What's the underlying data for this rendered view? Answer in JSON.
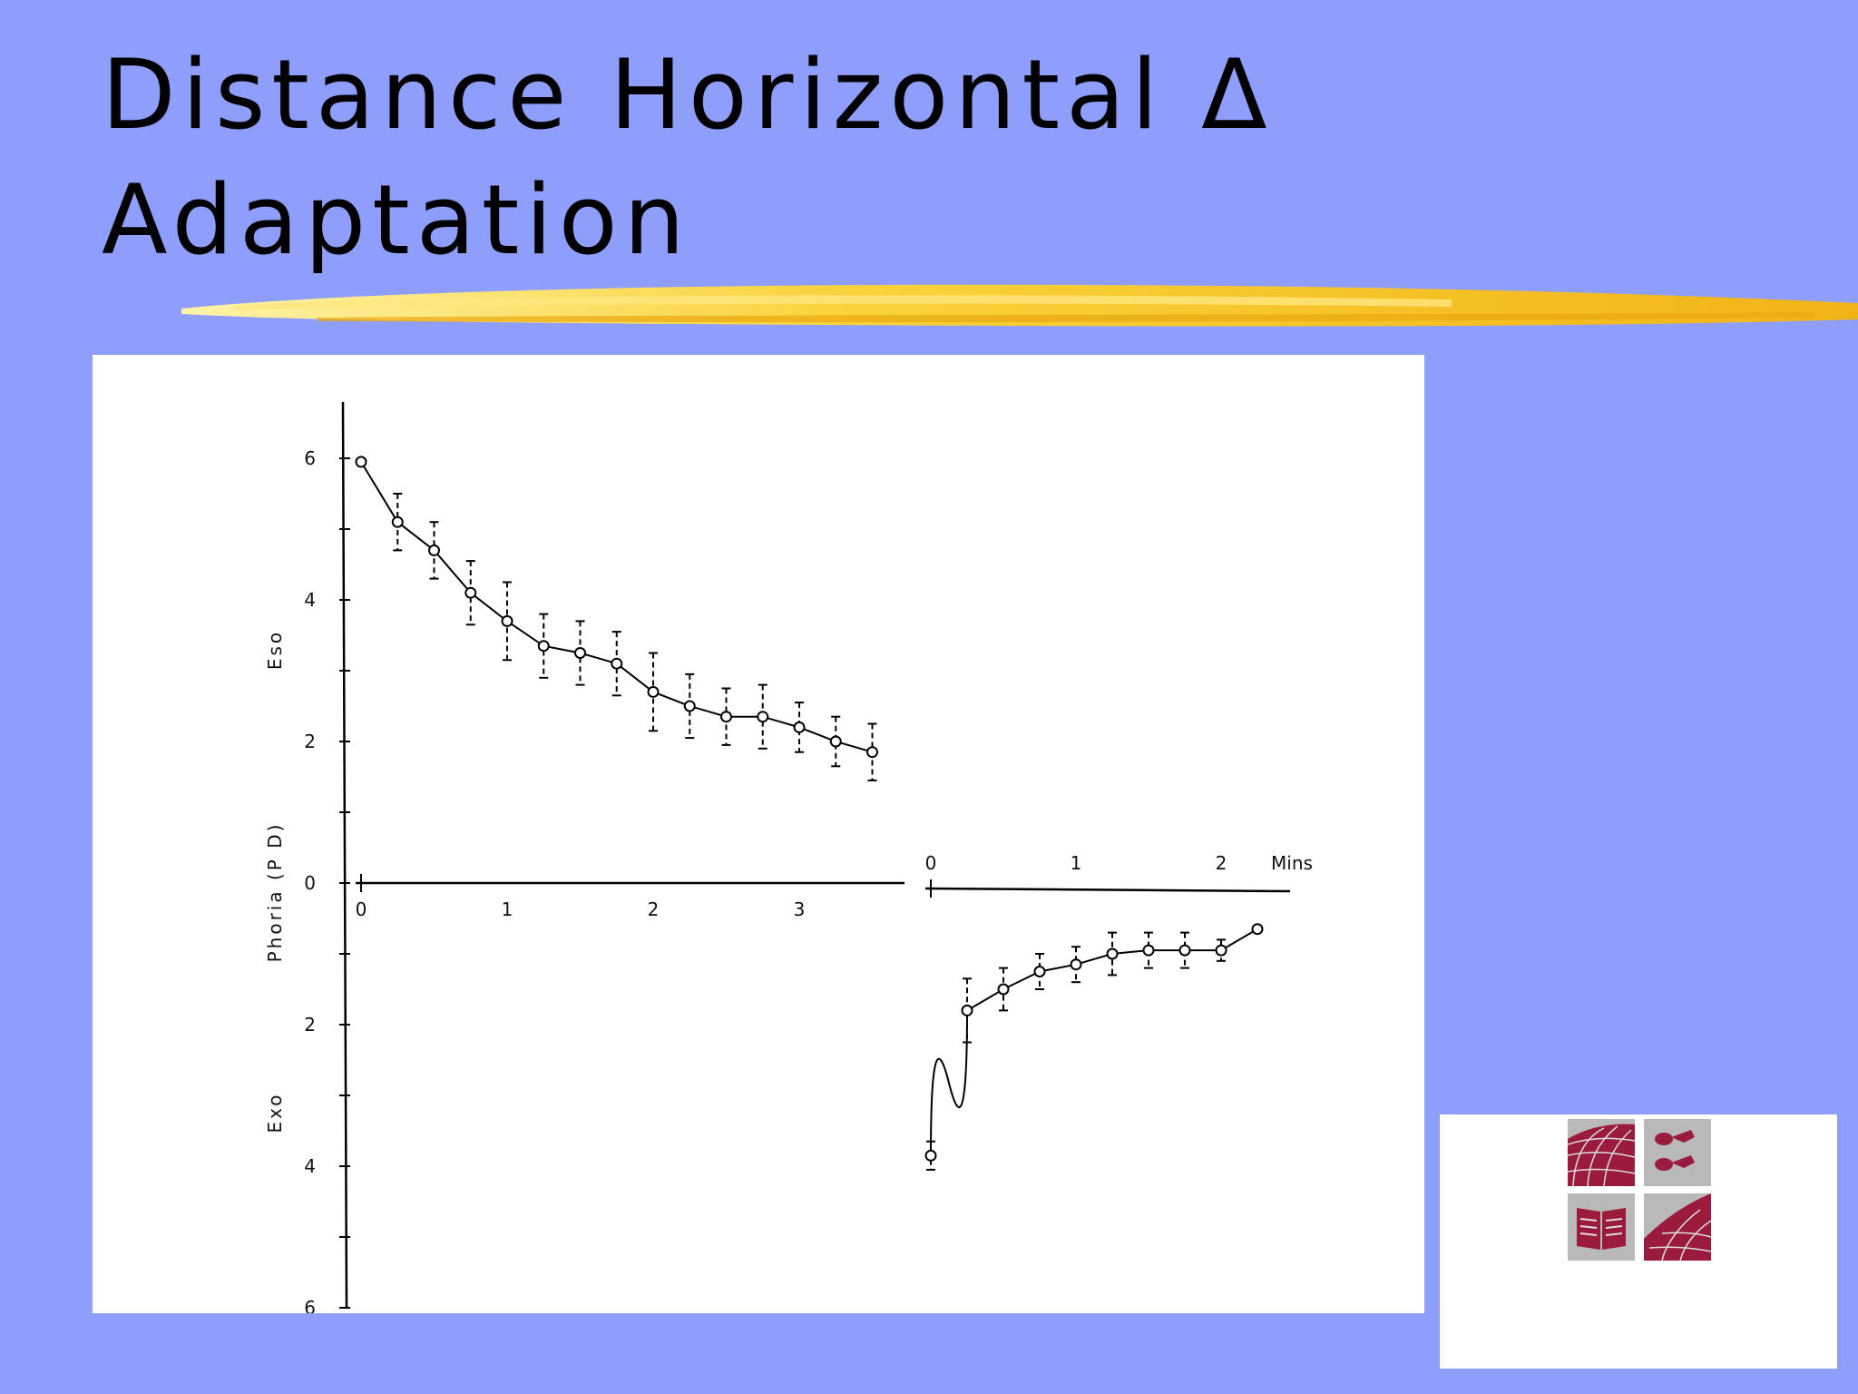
{
  "slide": {
    "title_line1": "Distance Horizontal Δ",
    "title_line2": "Adaptation"
  },
  "colors": {
    "background": "#8f9efb",
    "brush": "#f5c518",
    "logo_red": "#9b1b3c",
    "logo_gray": "#b9b9b9"
  },
  "chart_data": {
    "type": "scatter",
    "ylabel": "Phoria (P D)",
    "region_labels": [
      "Eso",
      "Exo"
    ],
    "y_ticks": [
      "6",
      "4",
      "2",
      "0",
      "2",
      "4",
      "6"
    ],
    "ylim": [
      -6,
      6
    ],
    "panels": [
      {
        "x_ticks": [
          "0",
          "1",
          "2",
          "3"
        ],
        "x_unit": "",
        "xlim": [
          0,
          3.5
        ],
        "points": [
          {
            "x": 0.0,
            "y": 5.95,
            "err": 0.0
          },
          {
            "x": 0.25,
            "y": 5.1,
            "err": 0.4
          },
          {
            "x": 0.5,
            "y": 4.7,
            "err": 0.4
          },
          {
            "x": 0.75,
            "y": 4.1,
            "err": 0.45
          },
          {
            "x": 1.0,
            "y": 3.7,
            "err": 0.55
          },
          {
            "x": 1.25,
            "y": 3.35,
            "err": 0.45
          },
          {
            "x": 1.5,
            "y": 3.25,
            "err": 0.45
          },
          {
            "x": 1.75,
            "y": 3.1,
            "err": 0.45
          },
          {
            "x": 2.0,
            "y": 2.7,
            "err": 0.55
          },
          {
            "x": 2.25,
            "y": 2.5,
            "err": 0.45
          },
          {
            "x": 2.5,
            "y": 2.35,
            "err": 0.4
          },
          {
            "x": 2.75,
            "y": 2.35,
            "err": 0.45
          },
          {
            "x": 3.0,
            "y": 2.2,
            "err": 0.35
          },
          {
            "x": 3.25,
            "y": 2.0,
            "err": 0.35
          },
          {
            "x": 3.5,
            "y": 1.85,
            "err": 0.4
          }
        ]
      },
      {
        "x_ticks": [
          "0",
          "1",
          "2"
        ],
        "x_unit": "Mins",
        "xlim": [
          0,
          2.25
        ],
        "points": [
          {
            "x": 0.0,
            "y": -3.85,
            "err": 0.2
          },
          {
            "x": 0.25,
            "y": -1.8,
            "err": 0.45
          },
          {
            "x": 0.5,
            "y": -1.5,
            "err": 0.3
          },
          {
            "x": 0.75,
            "y": -1.25,
            "err": 0.25
          },
          {
            "x": 1.0,
            "y": -1.15,
            "err": 0.25
          },
          {
            "x": 1.25,
            "y": -1.0,
            "err": 0.3
          },
          {
            "x": 1.5,
            "y": -0.95,
            "err": 0.25
          },
          {
            "x": 1.75,
            "y": -0.95,
            "err": 0.25
          },
          {
            "x": 2.0,
            "y": -0.95,
            "err": 0.15
          },
          {
            "x": 2.25,
            "y": -0.65,
            "err": 0.0
          }
        ]
      }
    ]
  }
}
